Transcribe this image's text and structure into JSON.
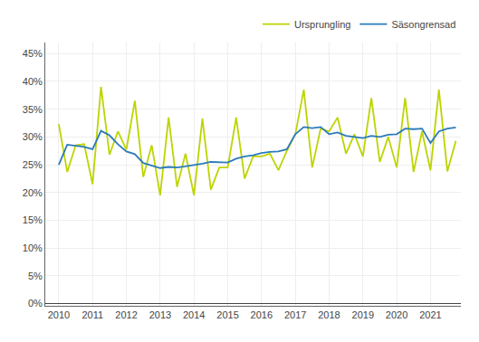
{
  "chart_data": {
    "type": "line",
    "x": [
      2010,
      2010.25,
      2010.5,
      2010.75,
      2011,
      2011.25,
      2011.5,
      2011.75,
      2012,
      2012.25,
      2012.5,
      2012.75,
      2013,
      2013.25,
      2013.5,
      2013.75,
      2014,
      2014.25,
      2014.5,
      2014.75,
      2015,
      2015.25,
      2015.5,
      2015.75,
      2016,
      2016.25,
      2016.5,
      2016.75,
      2017,
      2017.25,
      2017.5,
      2017.75,
      2018,
      2018.25,
      2018.5,
      2018.75,
      2019,
      2019.25,
      2019.5,
      2019.75,
      2020,
      2020.25,
      2020.5,
      2020.75,
      2021,
      2021.25,
      2021.5,
      2021.75
    ],
    "series": [
      {
        "name": "Ursprungling",
        "color": "#bdd400",
        "values": [
          0.323,
          0.237,
          0.285,
          0.287,
          0.215,
          0.39,
          0.268,
          0.31,
          0.277,
          0.365,
          0.228,
          0.285,
          0.195,
          0.335,
          0.21,
          0.27,
          0.195,
          0.333,
          0.205,
          0.245,
          0.245,
          0.335,
          0.225,
          0.265,
          0.265,
          0.27,
          0.24,
          0.275,
          0.305,
          0.385,
          0.245,
          0.315,
          0.31,
          0.335,
          0.27,
          0.305,
          0.265,
          0.37,
          0.255,
          0.3,
          0.245,
          0.37,
          0.237,
          0.31,
          0.24,
          0.385,
          0.238,
          0.293
        ]
      },
      {
        "name": "Säsongrensad",
        "color": "#2b7bba",
        "values": [
          0.25,
          0.286,
          0.284,
          0.282,
          0.278,
          0.311,
          0.303,
          0.287,
          0.274,
          0.269,
          0.253,
          0.249,
          0.244,
          0.246,
          0.245,
          0.247,
          0.249,
          0.252,
          0.255,
          0.255,
          0.254,
          0.261,
          0.265,
          0.267,
          0.271,
          0.273,
          0.274,
          0.278,
          0.305,
          0.318,
          0.316,
          0.318,
          0.305,
          0.308,
          0.302,
          0.3,
          0.298,
          0.302,
          0.3,
          0.304,
          0.305,
          0.315,
          0.314,
          0.315,
          0.289,
          0.31,
          0.315,
          0.317
        ]
      }
    ],
    "xlim": [
      2009.6,
      2021.9
    ],
    "xticks": [
      2010,
      2011,
      2012,
      2013,
      2014,
      2015,
      2016,
      2017,
      2018,
      2019,
      2020,
      2021
    ],
    "ylim": [
      -0.004,
      0.47
    ],
    "yticks": [
      {
        "value": 0.0,
        "label": "0%"
      },
      {
        "value": 0.05,
        "label": "5%"
      },
      {
        "value": 0.1,
        "label": "10%"
      },
      {
        "value": 0.15,
        "label": "15%"
      },
      {
        "value": 0.2,
        "label": "20%"
      },
      {
        "value": 0.25,
        "label": "25%"
      },
      {
        "value": 0.3,
        "label": "30%"
      },
      {
        "value": 0.35,
        "label": "35%"
      },
      {
        "value": 0.4,
        "label": "40%"
      },
      {
        "value": 0.45,
        "label": "45%"
      }
    ],
    "grid": true,
    "legend": "upper right"
  }
}
